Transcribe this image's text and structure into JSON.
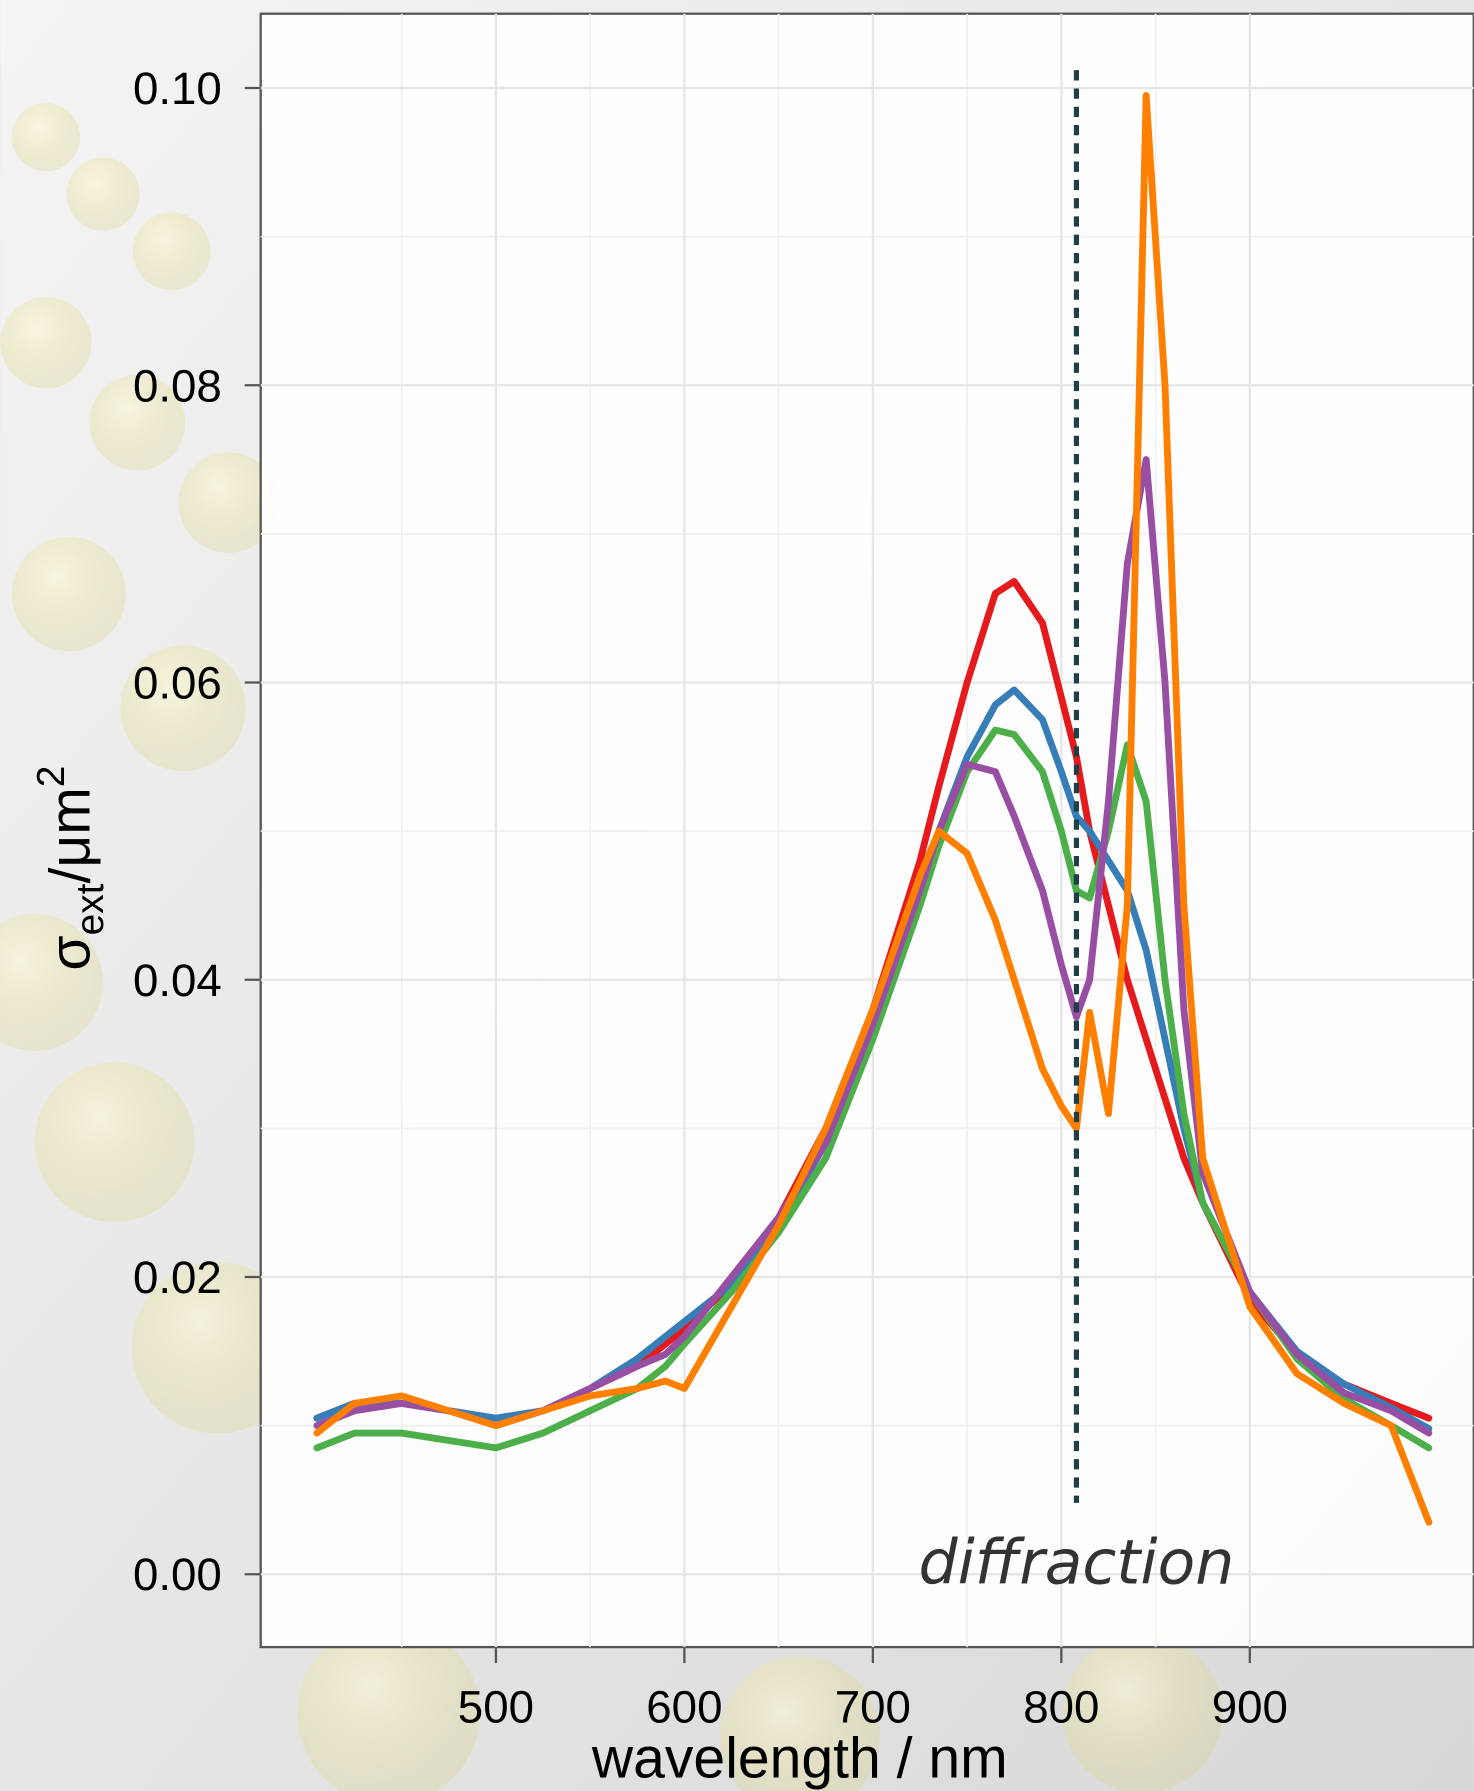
{
  "chart_data": {
    "type": "line",
    "x": [
      405,
      425,
      450,
      475,
      500,
      525,
      550,
      575,
      590,
      600,
      625,
      650,
      675,
      700,
      725,
      735,
      750,
      765,
      775,
      790,
      800,
      808,
      815,
      825,
      835,
      845,
      855,
      865,
      875,
      900,
      925,
      950,
      975,
      995
    ],
    "series": [
      {
        "color": "#e41a1c",
        "values": [
          0.0105,
          0.0115,
          0.0115,
          0.011,
          0.0105,
          0.011,
          0.0125,
          0.014,
          0.0155,
          0.0165,
          0.0195,
          0.024,
          0.03,
          0.038,
          0.048,
          0.053,
          0.06,
          0.066,
          0.0668,
          0.064,
          0.059,
          0.055,
          0.05,
          0.045,
          0.04,
          0.036,
          0.032,
          0.028,
          0.025,
          0.0185,
          0.0148,
          0.0128,
          0.0115,
          0.0105
        ]
      },
      {
        "color": "#377eb8",
        "values": [
          0.0105,
          0.0115,
          0.0115,
          0.011,
          0.0105,
          0.011,
          0.0125,
          0.0145,
          0.016,
          0.017,
          0.0195,
          0.0235,
          0.029,
          0.037,
          0.046,
          0.05,
          0.055,
          0.0585,
          0.0595,
          0.0575,
          0.054,
          0.051,
          0.05,
          0.048,
          0.046,
          0.042,
          0.036,
          0.03,
          0.025,
          0.019,
          0.015,
          0.0128,
          0.0112,
          0.0098
        ]
      },
      {
        "color": "#4daf4a",
        "values": [
          0.0085,
          0.0095,
          0.0095,
          0.009,
          0.0085,
          0.0095,
          0.011,
          0.0125,
          0.014,
          0.0155,
          0.019,
          0.023,
          0.028,
          0.036,
          0.045,
          0.049,
          0.054,
          0.0568,
          0.0565,
          0.054,
          0.05,
          0.046,
          0.0455,
          0.05,
          0.0558,
          0.052,
          0.04,
          0.031,
          0.025,
          0.019,
          0.0145,
          0.0118,
          0.01,
          0.0085
        ]
      },
      {
        "color": "#984ea3",
        "values": [
          0.01,
          0.011,
          0.0115,
          0.011,
          0.01,
          0.011,
          0.0125,
          0.014,
          0.0148,
          0.016,
          0.02,
          0.024,
          0.029,
          0.037,
          0.046,
          0.05,
          0.0545,
          0.054,
          0.051,
          0.046,
          0.041,
          0.0375,
          0.04,
          0.052,
          0.068,
          0.075,
          0.06,
          0.038,
          0.027,
          0.019,
          0.0148,
          0.0122,
          0.011,
          0.0095
        ]
      },
      {
        "color": "#ff7f00",
        "values": [
          0.0095,
          0.0115,
          0.012,
          0.011,
          0.01,
          0.011,
          0.012,
          0.0125,
          0.013,
          0.0125,
          0.018,
          0.0235,
          0.03,
          0.038,
          0.047,
          0.05,
          0.0485,
          0.044,
          0.04,
          0.034,
          0.0315,
          0.03,
          0.0378,
          0.031,
          0.045,
          0.0995,
          0.08,
          0.045,
          0.028,
          0.018,
          0.0135,
          0.0115,
          0.01,
          0.0035
        ]
      }
    ],
    "xlim": [
      375.2,
      1018.8
    ],
    "ylim": [
      -0.0049,
      0.105
    ],
    "xticks": [
      500,
      600,
      700,
      800,
      900
    ],
    "yticks": [
      {
        "value": 0,
        "label": "0.00"
      },
      0.02,
      0.04,
      0.06,
      0.08,
      {
        "value": 0.1,
        "label": "0.10"
      }
    ],
    "grid": true,
    "x_label": "wavelength / nm",
    "y_label": {
      "symbol": "σ",
      "subscript": "ext",
      "unit": "/μm",
      "superscript": "2"
    },
    "vline": {
      "x": 808,
      "ymin": 0.0048,
      "ymax": 0.1012,
      "color": "#1f3f47"
    },
    "annotation": "diffraction"
  }
}
